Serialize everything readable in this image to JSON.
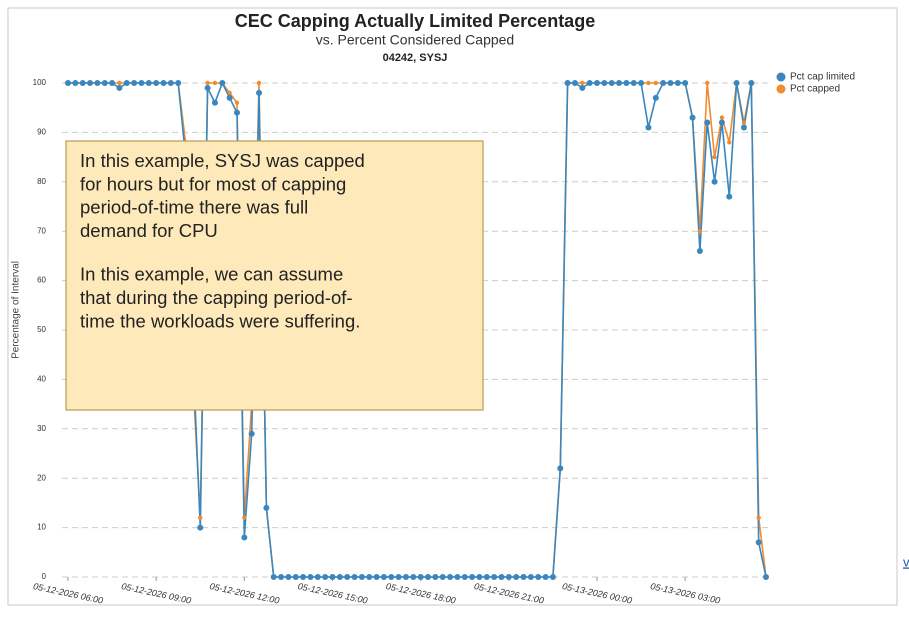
{
  "chart_data": {
    "type": "line",
    "title": "CEC Capping Actually Limited Percentage",
    "subtitle": "vs. Percent Considered Capped",
    "chart_label": "04242, SYSJ",
    "ylabel": "Percentage of Interval",
    "ylim": [
      0,
      100
    ],
    "yticks": [
      0,
      10,
      20,
      30,
      40,
      50,
      60,
      70,
      80,
      90,
      100
    ],
    "grid": true,
    "legend": "top-right",
    "xlim": [
      "05-12-2026 06:00",
      "05-13-2026 05:45"
    ],
    "xticks": [
      "05-12-2026 06:00",
      "05-12-2026 09:00",
      "05-12-2026 12:00",
      "05-12-2026 15:00",
      "05-12-2026 18:00",
      "05-12-2026 21:00",
      "05-13-2026 00:00",
      "05-13-2026 03:00"
    ],
    "x": [
      "05-12-2026 06:00",
      "05-12-2026 06:15",
      "05-12-2026 06:30",
      "05-12-2026 06:45",
      "05-12-2026 07:00",
      "05-12-2026 07:15",
      "05-12-2026 07:30",
      "05-12-2026 07:45",
      "05-12-2026 08:00",
      "05-12-2026 08:15",
      "05-12-2026 08:30",
      "05-12-2026 08:45",
      "05-12-2026 09:00",
      "05-12-2026 09:15",
      "05-12-2026 09:30",
      "05-12-2026 09:45",
      "05-12-2026 10:00",
      "05-12-2026 10:15",
      "05-12-2026 10:30",
      "05-12-2026 10:45",
      "05-12-2026 11:00",
      "05-12-2026 11:15",
      "05-12-2026 11:30",
      "05-12-2026 11:45",
      "05-12-2026 12:00",
      "05-12-2026 12:15",
      "05-12-2026 12:30",
      "05-12-2026 12:45",
      "05-12-2026 13:00",
      "05-12-2026 13:15",
      "05-12-2026 13:30",
      "05-12-2026 13:45",
      "05-12-2026 14:00",
      "05-12-2026 14:15",
      "05-12-2026 14:30",
      "05-12-2026 14:45",
      "05-12-2026 15:00",
      "05-12-2026 15:15",
      "05-12-2026 15:30",
      "05-12-2026 15:45",
      "05-12-2026 16:00",
      "05-12-2026 16:15",
      "05-12-2026 16:30",
      "05-12-2026 16:45",
      "05-12-2026 17:00",
      "05-12-2026 17:15",
      "05-12-2026 17:30",
      "05-12-2026 17:45",
      "05-12-2026 18:00",
      "05-12-2026 18:15",
      "05-12-2026 18:30",
      "05-12-2026 18:45",
      "05-12-2026 19:00",
      "05-12-2026 19:15",
      "05-12-2026 19:30",
      "05-12-2026 19:45",
      "05-12-2026 20:00",
      "05-12-2026 20:15",
      "05-12-2026 20:30",
      "05-12-2026 20:45",
      "05-12-2026 21:00",
      "05-12-2026 21:15",
      "05-12-2026 21:30",
      "05-12-2026 21:45",
      "05-12-2026 22:00",
      "05-12-2026 22:15",
      "05-12-2026 22:30",
      "05-12-2026 22:45",
      "05-12-2026 23:00",
      "05-12-2026 23:15",
      "05-12-2026 23:30",
      "05-12-2026 23:45",
      "05-13-2026 00:00",
      "05-13-2026 00:15",
      "05-13-2026 00:30",
      "05-13-2026 00:45",
      "05-13-2026 01:00",
      "05-13-2026 01:15",
      "05-13-2026 01:30",
      "05-13-2026 01:45",
      "05-13-2026 02:00",
      "05-13-2026 02:15",
      "05-13-2026 02:30",
      "05-13-2026 02:45",
      "05-13-2026 03:00",
      "05-13-2026 03:15",
      "05-13-2026 03:30",
      "05-13-2026 03:45",
      "05-13-2026 04:00",
      "05-13-2026 04:15",
      "05-13-2026 04:30",
      "05-13-2026 04:45",
      "05-13-2026 05:00",
      "05-13-2026 05:15",
      "05-13-2026 05:30",
      "05-13-2026 05:45"
    ],
    "series": [
      {
        "name": "Pct cap limited",
        "color": "#3a87bf",
        "values": [
          100,
          100,
          100,
          100,
          100,
          100,
          100,
          99,
          100,
          100,
          100,
          100,
          100,
          100,
          100,
          100,
          85,
          45,
          10,
          99,
          96,
          100,
          97,
          94,
          8,
          29,
          98,
          14,
          0,
          0,
          0,
          0,
          0,
          0,
          0,
          0,
          0,
          0,
          0,
          0,
          0,
          0,
          0,
          0,
          0,
          0,
          0,
          0,
          0,
          0,
          0,
          0,
          0,
          0,
          0,
          0,
          0,
          0,
          0,
          0,
          0,
          0,
          0,
          0,
          0,
          0,
          0,
          22,
          100,
          100,
          99,
          100,
          100,
          100,
          100,
          100,
          100,
          100,
          100,
          91,
          97,
          100,
          100,
          100,
          100,
          93,
          66,
          92,
          80,
          92,
          77,
          100,
          91,
          100,
          7,
          0
        ]
      },
      {
        "name": "Pct capped",
        "color": "#f08c2e",
        "values": [
          100,
          100,
          100,
          100,
          100,
          100,
          100,
          100,
          100,
          100,
          100,
          100,
          100,
          100,
          100,
          100,
          88,
          40,
          12,
          100,
          100,
          100,
          98,
          96,
          12,
          35,
          100,
          14,
          0,
          0,
          0,
          0,
          0,
          0,
          0,
          0,
          0,
          0,
          0,
          0,
          0,
          0,
          0,
          0,
          0,
          0,
          0,
          0,
          0,
          0,
          0,
          0,
          0,
          0,
          0,
          0,
          0,
          0,
          0,
          0,
          0,
          0,
          0,
          0,
          0,
          0,
          0,
          22,
          100,
          100,
          100,
          100,
          100,
          100,
          100,
          100,
          100,
          100,
          100,
          100,
          100,
          100,
          100,
          100,
          100,
          93,
          70,
          100,
          85,
          93,
          88,
          100,
          92,
          100,
          12,
          0
        ]
      }
    ],
    "annotation": [
      [
        "In this example, SYSJ was capped",
        "for hours but for most of capping",
        "period-of-time there was full",
        "demand for CPU"
      ],
      [
        "In this example, we can assume",
        "that during the capping period-of-",
        "time the workloads were suffering."
      ]
    ],
    "link": "v"
  }
}
